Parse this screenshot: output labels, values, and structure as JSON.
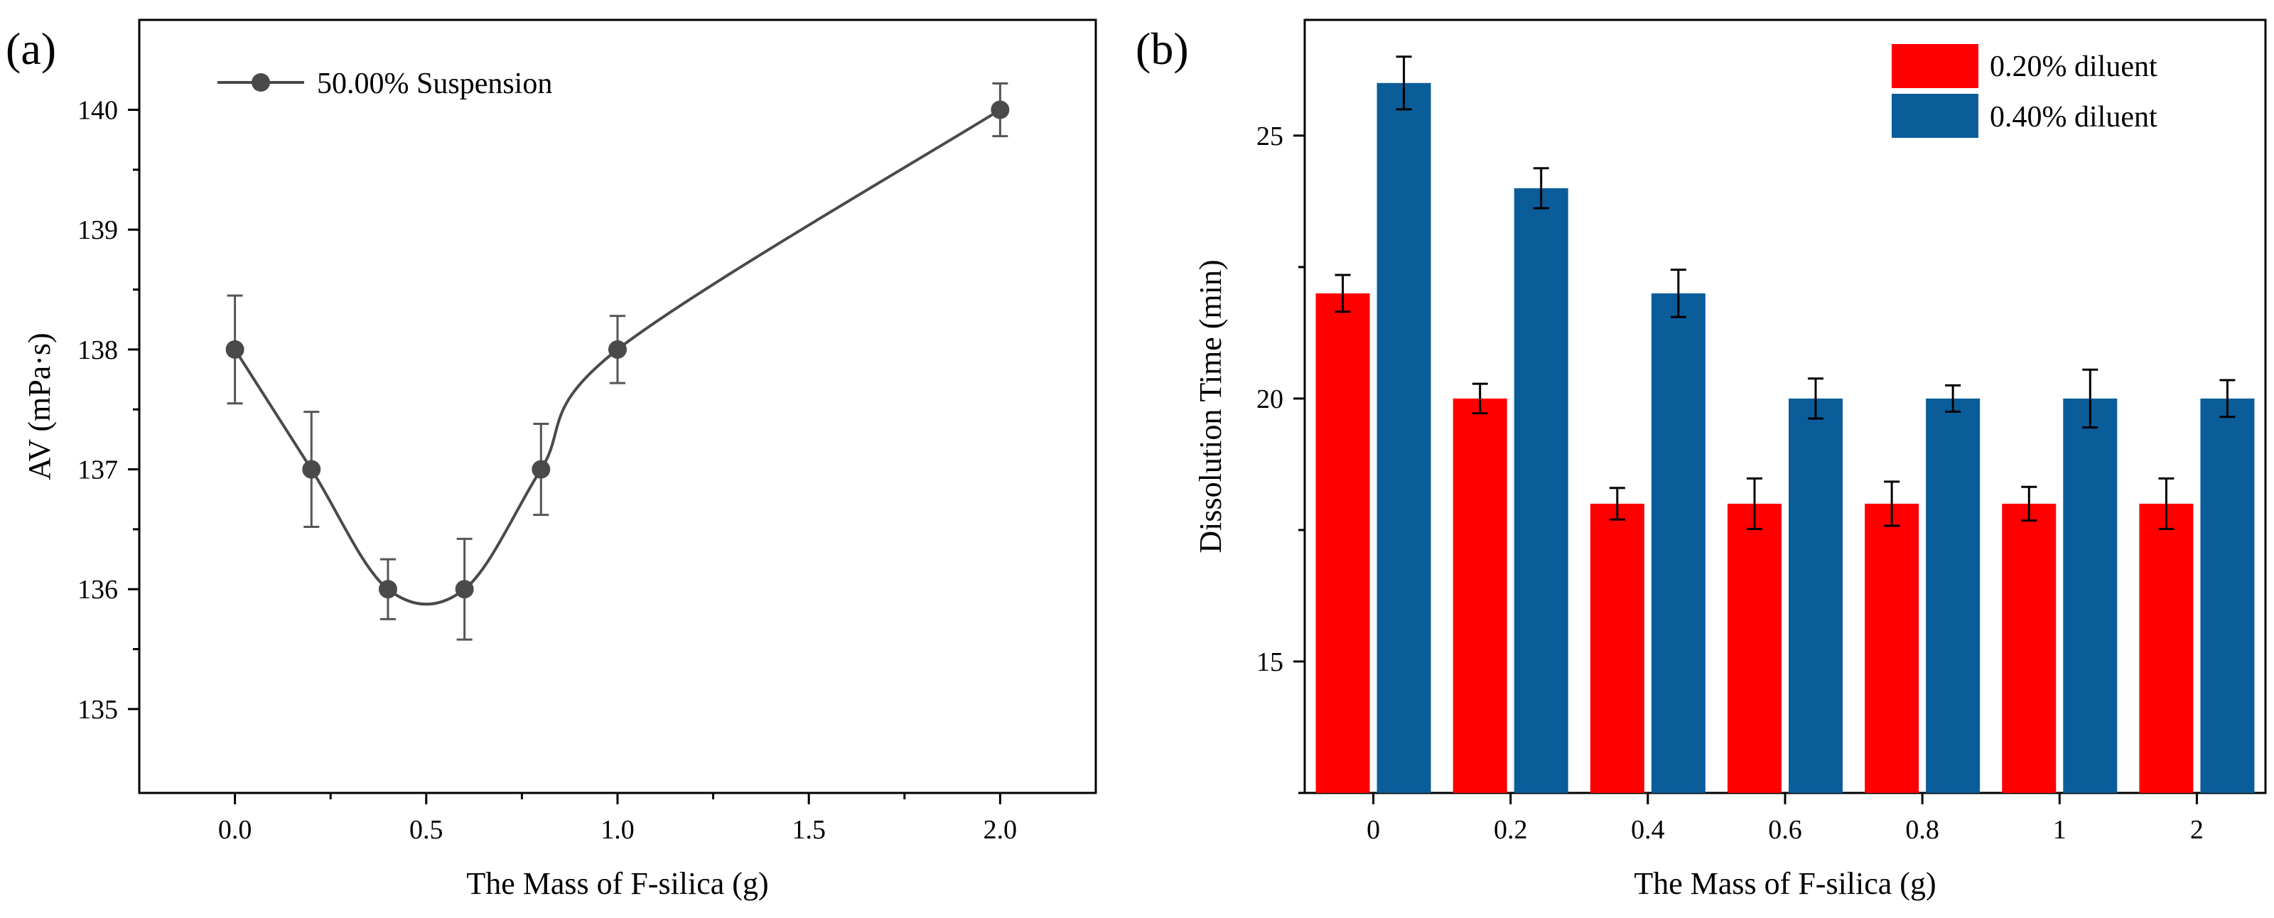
{
  "chart_data": [
    {
      "panel_label": "(a)",
      "type": "line",
      "x": [
        0.0,
        0.2,
        0.4,
        0.6,
        0.8,
        1.0,
        2.0
      ],
      "series": [
        {
          "name": "50.00% Suspension",
          "values": [
            138,
            137,
            136,
            136,
            137,
            138,
            140
          ],
          "errors": [
            0.45,
            0.48,
            0.25,
            0.42,
            0.38,
            0.28,
            0.22
          ]
        }
      ],
      "xlabel": "The Mass of F-silica  (g)",
      "ylabel": "AV (mPa·s)",
      "xlim": [
        -0.25,
        2.25
      ],
      "ylim": [
        134.3,
        140.75
      ],
      "xticks": [
        0.0,
        0.5,
        1.0,
        1.5,
        2.0
      ],
      "xtick_labels": [
        "0.0",
        "0.5",
        "1.0",
        "1.5",
        "2.0"
      ],
      "yticks": [
        135,
        136,
        137,
        138,
        139,
        140
      ],
      "ytick_labels": [
        "135",
        "136",
        "137",
        "138",
        "139",
        "140"
      ],
      "line_style": "smoothed spline with circle markers",
      "grid": false,
      "legend_position": "top-left",
      "colors": {
        "series": "#4a4a4a"
      }
    },
    {
      "panel_label": "(b)",
      "type": "bar",
      "categories": [
        "0",
        "0.2",
        "0.4",
        "0.6",
        "0.8",
        "1",
        "2"
      ],
      "series": [
        {
          "name": "0.20% diluent",
          "values": [
            22,
            20,
            18,
            18,
            18,
            18,
            18
          ],
          "errors": [
            0.35,
            0.28,
            0.3,
            0.48,
            0.42,
            0.32,
            0.48
          ],
          "color": "#ff0000"
        },
        {
          "name": "0.40% diluent",
          "values": [
            26,
            24,
            22,
            20,
            20,
            20,
            20
          ],
          "errors": [
            0.5,
            0.38,
            0.45,
            0.38,
            0.25,
            0.55,
            0.35
          ],
          "color": "#0b5d9a"
        }
      ],
      "xlabel": "The Mass of F-silica  (g)",
      "ylabel": "Dissolution Time (min)",
      "ylim": [
        12.5,
        27.2
      ],
      "yticks": [
        15,
        20,
        25
      ],
      "ytick_labels": [
        "15",
        "20",
        "25"
      ],
      "grid": false,
      "legend_position": "top-right"
    }
  ]
}
